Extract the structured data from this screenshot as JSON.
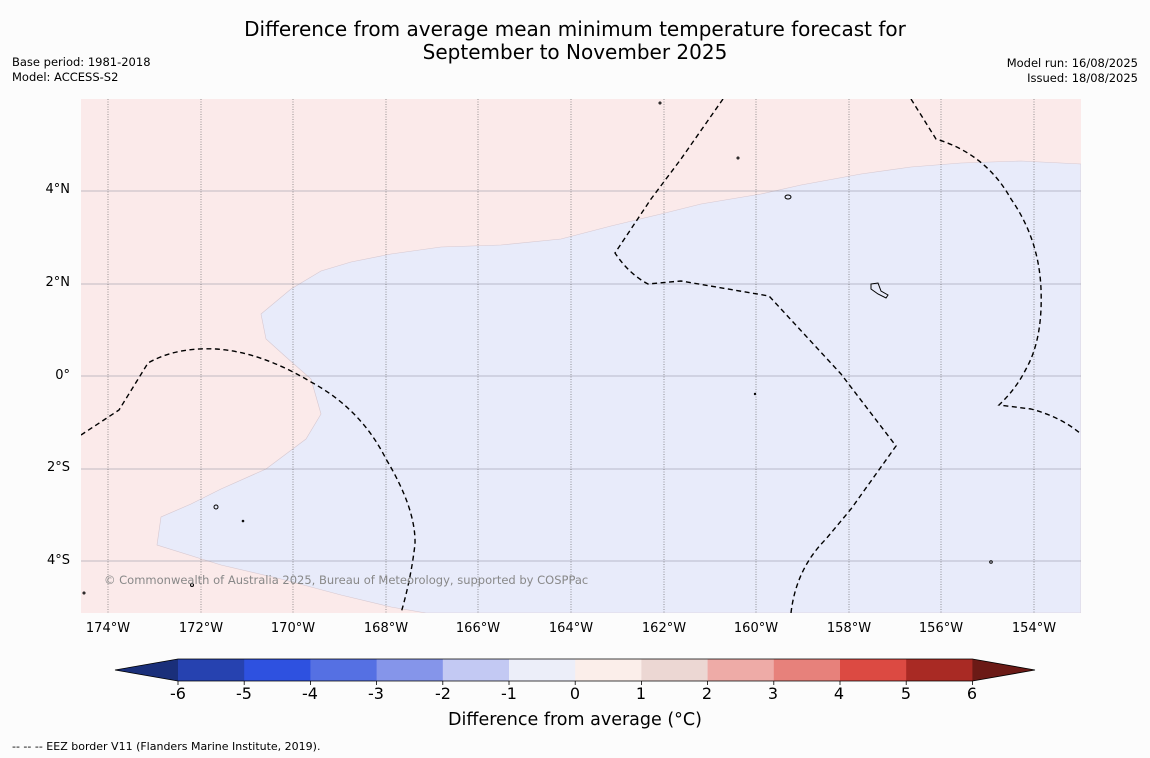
{
  "title_line1": "Difference from average mean minimum temperature forecast for",
  "title_line2": "September to November 2025",
  "base_period": "Base period: 1981-2018",
  "model": "Model: ACCESS-S2",
  "model_run": "Model run: 16/08/2025",
  "issued": "Issued: 18/08/2025",
  "map": {
    "lat_labels": [
      "4°N",
      "2°N",
      "0°",
      "2°S",
      "4°S"
    ],
    "lon_labels": [
      "174°W",
      "172°W",
      "170°W",
      "168°W",
      "166°W",
      "164°W",
      "162°W",
      "160°W",
      "158°W",
      "156°W",
      "154°W"
    ],
    "copyright": "© Commonwealth of Australia 2025, Bureau of Meteorology, supported by COSPPac",
    "colors": {
      "warm_fill": "#fbeaea",
      "cool_fill": "#e8ebfa"
    }
  },
  "colorbar": {
    "labels": [
      "-6",
      "-5",
      "-4",
      "-3",
      "-2",
      "-1",
      "0",
      "1",
      "2",
      "3",
      "4",
      "5",
      "6"
    ],
    "colors": [
      "#1a2f7a",
      "#2642b0",
      "#2e51e0",
      "#5570e3",
      "#8595ea",
      "#c3c9f3",
      "#eceef9",
      "#fbeeea",
      "#ecd7d3",
      "#eeaba7",
      "#e7817b",
      "#dc4a42",
      "#a92a24",
      "#6b1a16"
    ],
    "title": "Difference from average (°C)"
  },
  "footnote": "--  --  -- EEZ border V11 (Flanders Marine Institute, 2019)."
}
